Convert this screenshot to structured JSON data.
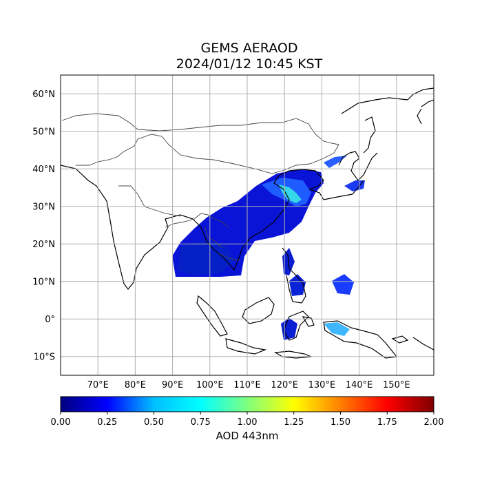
{
  "title": {
    "line1": "GEMS AERAOD",
    "line2": "2024/01/12 10:45 KST"
  },
  "map": {
    "projection": "PlateCarree",
    "lon_range": [
      60,
      160
    ],
    "lat_range": [
      -15,
      65
    ],
    "gridlines": true,
    "lat_ticks": [
      "60°N",
      "50°N",
      "40°N",
      "30°N",
      "20°N",
      "10°N",
      "0°",
      "10°S"
    ],
    "lat_values": [
      60,
      50,
      40,
      30,
      20,
      10,
      0,
      -10
    ],
    "lon_ticks": [
      "70°E",
      "80°E",
      "90°E",
      "100°E",
      "110°E",
      "120°E",
      "130°E",
      "140°E",
      "150°E"
    ],
    "lon_values": [
      70,
      80,
      90,
      100,
      110,
      120,
      130,
      140,
      150
    ]
  },
  "colorbar": {
    "label": "AOD 443nm",
    "range": [
      0,
      2
    ],
    "tick_values": [
      0.0,
      0.25,
      0.5,
      0.75,
      1.0,
      1.25,
      1.5,
      1.75,
      2.0
    ],
    "tick_labels": [
      "0.00",
      "0.25",
      "0.50",
      "0.75",
      "1.00",
      "1.25",
      "1.50",
      "1.75",
      "2.00"
    ],
    "colormap": "jet",
    "colors": [
      "#00007f",
      "#0000ff",
      "#00bfff",
      "#00ffff",
      "#7fff7f",
      "#ffff00",
      "#ff7f00",
      "#ff0000",
      "#7f0000"
    ]
  }
}
